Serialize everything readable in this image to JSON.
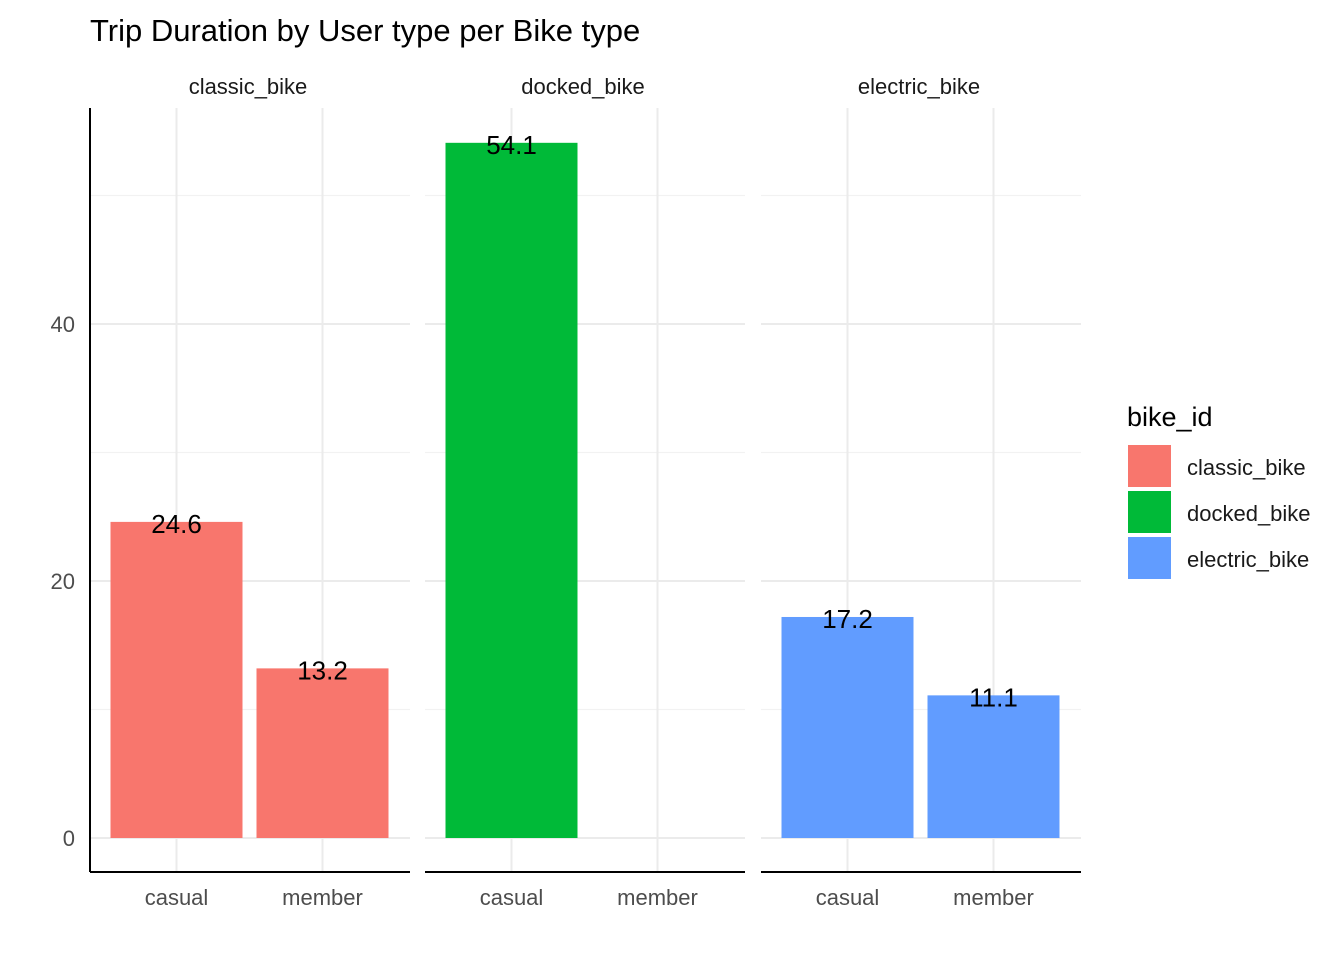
{
  "chart_data": {
    "type": "bar",
    "title": "Trip Duration by User type per Bike type",
    "facets": [
      "classic_bike",
      "docked_bike",
      "electric_bike"
    ],
    "categories": [
      "casual",
      "member"
    ],
    "series": [
      {
        "name": "classic_bike",
        "color": "#F8766D",
        "values": [
          24.6,
          13.2
        ]
      },
      {
        "name": "docked_bike",
        "color": "#00BA38",
        "values": [
          54.1,
          null
        ]
      },
      {
        "name": "electric_bike",
        "color": "#619CFF",
        "values": [
          17.2,
          11.1
        ]
      }
    ],
    "data_labels": [
      [
        "24.6",
        "13.2"
      ],
      [
        "54.1",
        ""
      ],
      [
        "17.2",
        "11.1"
      ]
    ],
    "y_ticks": [
      "0",
      "20",
      "40"
    ],
    "ylim": [
      0,
      59.5
    ],
    "legend": {
      "title": "bike_id",
      "position": "right"
    },
    "grid": true
  }
}
